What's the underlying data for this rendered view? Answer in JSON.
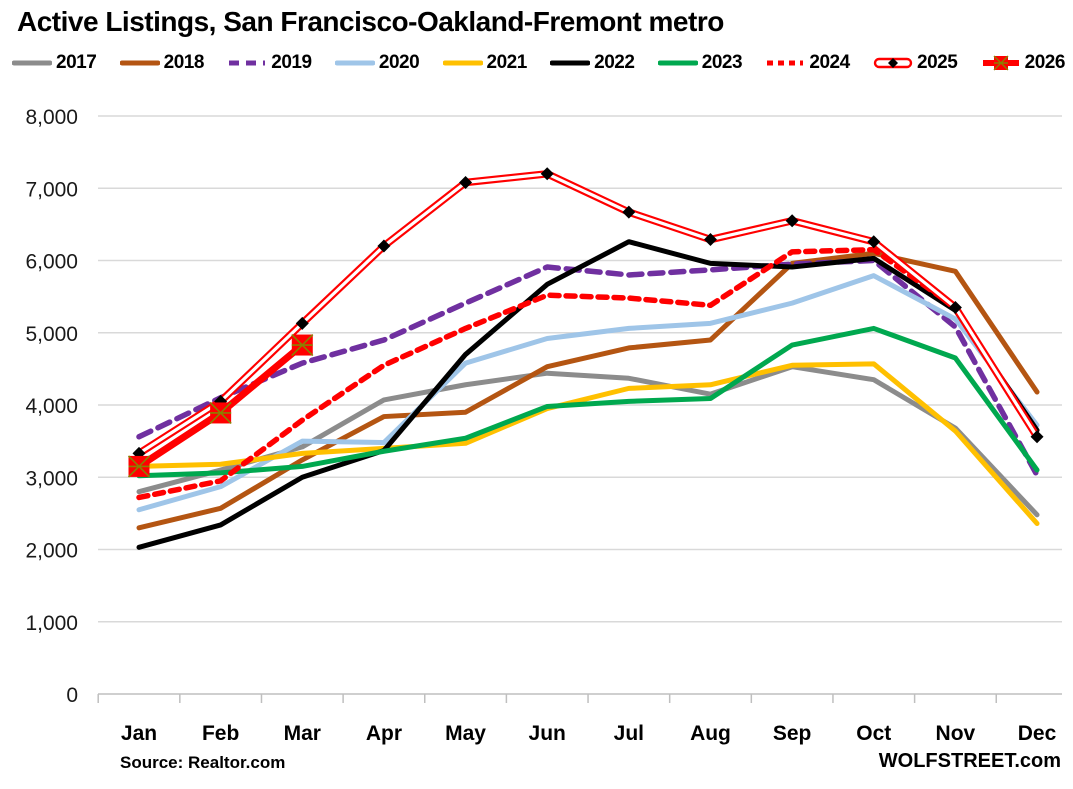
{
  "title": "Active Listings, San Francisco-Oakland-Fremont metro",
  "footer": {
    "source": "Source: Realtor.com",
    "brand": "WOLFSTREET.com"
  },
  "colors": {
    "gridline": "#D9D9D9",
    "axis": "#BFBFBF",
    "tick_label": "#1a1a1a",
    "month_label": "#000000"
  },
  "chart_data": {
    "type": "line",
    "title": "Active Listings, San Francisco-Oakland-Fremont metro",
    "xlabel": "",
    "ylabel": "",
    "categories": [
      "Jan",
      "Feb",
      "Mar",
      "Apr",
      "May",
      "Jun",
      "Jul",
      "Aug",
      "Sep",
      "Oct",
      "Nov",
      "Dec"
    ],
    "y_ticks": [
      0,
      1000,
      2000,
      3000,
      4000,
      5000,
      6000,
      7000,
      8000
    ],
    "ylim": [
      0,
      8000
    ],
    "grid": "horizontal",
    "legend_position": "top",
    "series": [
      {
        "name": "2017",
        "color": "#8C8C8C",
        "style": "solid",
        "values": [
          2800,
          3100,
          3420,
          4070,
          4280,
          4440,
          4370,
          4150,
          4530,
          4350,
          3680,
          2480
        ]
      },
      {
        "name": "2018",
        "color": "#B45512",
        "style": "solid",
        "values": [
          2300,
          2570,
          3240,
          3840,
          3900,
          4530,
          4790,
          4900,
          5960,
          6100,
          5850,
          4180
        ]
      },
      {
        "name": "2019",
        "color": "#7030A0",
        "style": "dashed",
        "values": [
          3560,
          4100,
          4580,
          4900,
          5410,
          5910,
          5800,
          5870,
          5950,
          6000,
          5080,
          3030
        ]
      },
      {
        "name": "2020",
        "color": "#9FC5E8",
        "style": "solid",
        "values": [
          2550,
          2870,
          3500,
          3480,
          4580,
          4920,
          5060,
          5130,
          5410,
          5790,
          5190,
          3720
        ]
      },
      {
        "name": "2021",
        "color": "#FFC000",
        "style": "solid",
        "values": [
          3150,
          3180,
          3330,
          3400,
          3470,
          3950,
          4230,
          4280,
          4550,
          4570,
          3640,
          2360
        ]
      },
      {
        "name": "2022",
        "color": "#000000",
        "style": "solid",
        "values": [
          2030,
          2340,
          3000,
          3370,
          4700,
          5670,
          6260,
          5960,
          5910,
          6030,
          5310,
          3650
        ]
      },
      {
        "name": "2023",
        "color": "#00A84F",
        "style": "solid",
        "values": [
          3020,
          3060,
          3150,
          3360,
          3540,
          3980,
          4050,
          4090,
          4830,
          5060,
          4650,
          3100
        ]
      },
      {
        "name": "2024",
        "color": "#FF0000",
        "style": "dashed-short",
        "values": [
          2720,
          2950,
          3790,
          4550,
          5060,
          5520,
          5480,
          5380,
          6120,
          6150,
          5350,
          3550
        ]
      },
      {
        "name": "2025",
        "color": "#FF0000",
        "style": "double-line",
        "marker": "black-diamond",
        "values": [
          3330,
          4050,
          5130,
          6200,
          7080,
          7200,
          6670,
          6290,
          6550,
          6260,
          5350,
          3560
        ]
      },
      {
        "name": "2026",
        "color": "#FF0000",
        "style": "thick",
        "marker": "red-square-x",
        "values": [
          3150,
          3890,
          4830
        ]
      }
    ]
  }
}
